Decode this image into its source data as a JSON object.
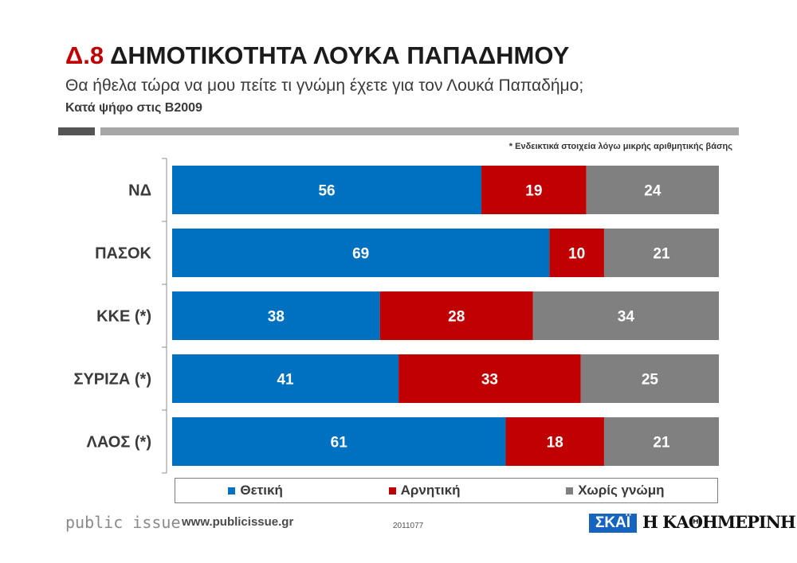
{
  "header": {
    "code": "Δ.8",
    "title": "ΔΗΜΟΤΙΚΟΤΗΤΑ ΛΟΥΚΑ ΠΑΠΑΔΗΜΟΥ",
    "subtitle": "Θα ήθελα τώρα να μου πείτε τι γνώμη έχετε για τον Λουκά Παπαδήμο;",
    "subsubtitle": "Κατά ψήφο στις Β2009",
    "note": "* Ενδεικτικά στοιχεία λόγω μικρής αριθμητικής βάσης"
  },
  "chart_data": {
    "type": "bar",
    "orientation": "horizontal",
    "stacked": true,
    "categories": [
      "ΝΔ",
      "ΠΑΣΟΚ",
      "ΚΚΕ (*)",
      "ΣΥΡΙΖΑ (*)",
      "ΛΑΟΣ (*)"
    ],
    "series": [
      {
        "name": "Θετική",
        "color": "#0070c0",
        "values": [
          56,
          69,
          38,
          41,
          61
        ]
      },
      {
        "name": "Αρνητική",
        "color": "#c00000",
        "values": [
          19,
          10,
          28,
          33,
          18
        ]
      },
      {
        "name": "Χωρίς γνώμη",
        "color": "#808080",
        "values": [
          24,
          21,
          34,
          25,
          21
        ]
      }
    ],
    "legend": "bottom"
  },
  "footer": {
    "brand": "public issue",
    "website": "www.publicissue.gr",
    "code": "2011077",
    "logo_skai": "ΣΚΑΪ",
    "logo_kathimerini": "Η ΚΑΘΗΜΕΡΙΝΗ"
  }
}
